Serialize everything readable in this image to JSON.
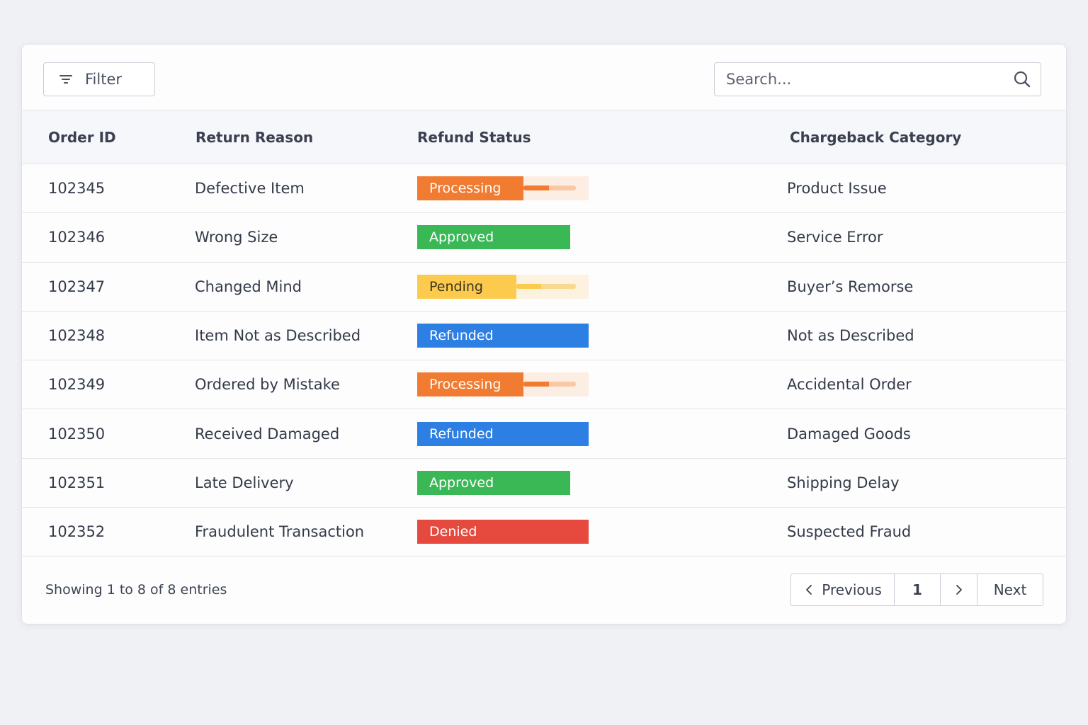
{
  "toolbar": {
    "filter_label": "Filter",
    "search_placeholder": "Search..."
  },
  "columns": [
    "Order ID",
    "Return Reason",
    "Refund Status",
    "Chargeback Category"
  ],
  "rows": [
    {
      "id": "102345",
      "reason": "Defective Item",
      "status": "Processing",
      "category": "Product Issue"
    },
    {
      "id": "102346",
      "reason": "Wrong Size",
      "status": "Approved",
      "category": "Service Error"
    },
    {
      "id": "102347",
      "reason": "Changed Mind",
      "status": "Pending",
      "category": "Buyer’s Remorse"
    },
    {
      "id": "102348",
      "reason": "Item Not as Described",
      "status": "Refunded",
      "category": "Not as Described"
    },
    {
      "id": "102349",
      "reason": "Ordered by Mistake",
      "status": "Processing",
      "category": "Accidental Order"
    },
    {
      "id": "102350",
      "reason": "Received Damaged",
      "status": "Refunded",
      "category": "Damaged Goods"
    },
    {
      "id": "102351",
      "reason": "Late Delivery",
      "status": "Approved",
      "category": "Shipping Delay"
    },
    {
      "id": "102352",
      "reason": "Fraudulent Transaction",
      "status": "Denied",
      "category": "Suspected Fraud"
    }
  ],
  "status_styles": {
    "Processing": {
      "color": "#f07b31",
      "track": "#fdeee4",
      "bar_bg": "#f9c9a6",
      "progress": 0.48
    },
    "Approved": {
      "color": "#3bb856"
    },
    "Pending": {
      "color": "#fcca4c",
      "text_color": "#3a3320",
      "track": "#fdf2df",
      "bar_bg": "#f9d98f",
      "progress": 0.42
    },
    "Refunded": {
      "color": "#2d7fe3"
    },
    "Denied": {
      "color": "#e64a3f"
    }
  },
  "footer": {
    "entries_text": "Showing 1 to 8 of 8 entries",
    "prev_label": "Previous",
    "current_page": "1",
    "next_label": "Next"
  }
}
